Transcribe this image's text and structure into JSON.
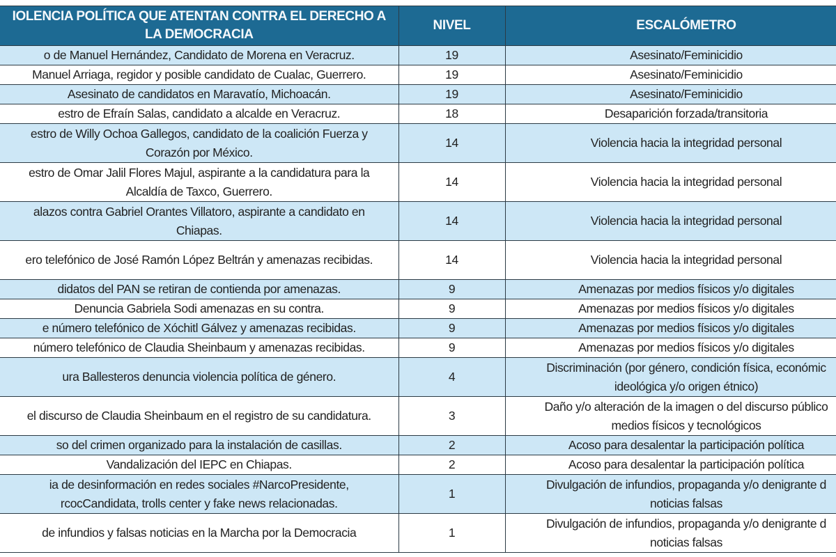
{
  "header": {
    "col1": "IOLENCIA POLÍTICA QUE ATENTAN CONTRA EL DERECHO A\nLA DEMOCRACIA",
    "col2": "NIVEL",
    "col3": "ESCALÓMETRO"
  },
  "colors": {
    "header_bg": "#1d6a93",
    "row_alt": "#cde7f6"
  },
  "rows": [
    {
      "event": "o de Manuel Hernández, Candidato de Morena en Veracruz.",
      "level": "19",
      "scale": "Asesinato/Feminicidio"
    },
    {
      "event": "Manuel Arriaga, regidor y posible candidato de Cualac, Guerrero.",
      "level": "19",
      "scale": "Asesinato/Feminicidio"
    },
    {
      "event": "Asesinato de candidatos en Maravatío, Michoacán.",
      "level": "19",
      "scale": "Asesinato/Feminicidio"
    },
    {
      "event": "estro de Efraín Salas, candidato a alcalde en Veracruz.",
      "level": "18",
      "scale": "Desaparición forzada/transitoria"
    },
    {
      "event": "estro de Willy Ochoa Gallegos, candidato de la coalición Fuerza y\nCorazón por México.",
      "level": "14",
      "scale": "Violencia hacia la integridad personal"
    },
    {
      "event": "estro de Omar Jalil Flores Majul, aspirante a la candidatura para la\nAlcaldía de Taxco, Guerrero.",
      "level": "14",
      "scale": "Violencia hacia la integridad personal"
    },
    {
      "event": "alazos contra Gabriel Orantes Villatoro, aspirante a candidato en\nChiapas.",
      "level": "14",
      "scale": "Violencia hacia la integridad personal"
    },
    {
      "event": "ero telefónico de José Ramón López Beltrán y amenazas recibidas.",
      "level": "14",
      "scale": "Violencia hacia la integridad personal"
    },
    {
      "event": "didatos del PAN se retiran de contienda por amenazas.",
      "level": "9",
      "scale": "Amenazas por medios físicos y/o digitales"
    },
    {
      "event": "Denuncia Gabriela Sodi amenazas en su contra.",
      "level": "9",
      "scale": "Amenazas por medios físicos y/o digitales"
    },
    {
      "event": "e número telefónico de Xóchitl Gálvez y amenazas recibidas.",
      "level": "9",
      "scale": "Amenazas por medios físicos y/o digitales"
    },
    {
      "event": "número telefónico de Claudia Sheinbaum y amenazas recibidas.",
      "level": "9",
      "scale": "Amenazas por medios físicos y/o digitales"
    },
    {
      "event": "ura Ballesteros denuncia violencia política de género.",
      "level": "4",
      "scale": "Discriminación (por género, condición física, económic\nideológica y/o origen étnico)"
    },
    {
      "event": "el discurso de Claudia Sheinbaum en el registro de su candidatura.",
      "level": "3",
      "scale": "Daño y/o alteración de la imagen o del discurso público\nmedios físicos y tecnológicos"
    },
    {
      "event": "so del crimen organizado para la instalación de casillas.",
      "level": "2",
      "scale": "Acoso para desalentar la participación política"
    },
    {
      "event": "Vandalización del IEPC en Chiapas.",
      "level": "2",
      "scale": "Acoso para desalentar la participación política"
    },
    {
      "event": "ia de desinformación en redes sociales #NarcoPresidente,\nrcocCandidata, trolls center y fake news relacionadas.",
      "level": "1",
      "scale": "Divulgación de infundios, propaganda y/o denigrante d\nnoticias falsas"
    },
    {
      "event": "de infundios y falsas noticias en la Marcha por la Democracia",
      "level": "1",
      "scale": "Divulgación de infundios, propaganda y/o denigrante d\nnoticias falsas"
    }
  ]
}
